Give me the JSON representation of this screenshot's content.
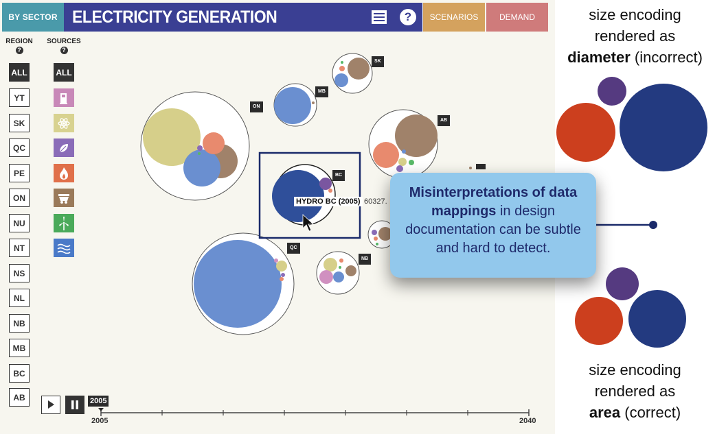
{
  "header": {
    "sector_button": "BY SECTOR",
    "title": "ELECTRICITY GENERATION",
    "list_icon": "list-icon",
    "help_icon": "?",
    "scenarios_button": "SCENARIOS",
    "demand_button": "DEMAND"
  },
  "region_column": {
    "heading": "REGION",
    "help": "?",
    "items": [
      "ALL",
      "YT",
      "SK",
      "QC",
      "PE",
      "ON",
      "NU",
      "NT",
      "NS",
      "NL",
      "NB",
      "MB",
      "BC",
      "AB"
    ],
    "selected": "ALL"
  },
  "sources_column": {
    "heading": "SOURCES",
    "help": "?",
    "all_label": "ALL",
    "items": [
      {
        "icon": "fuel-pump-icon",
        "color": "#c888b8"
      },
      {
        "icon": "atom-icon",
        "color": "#d8d290"
      },
      {
        "icon": "leaf-icon",
        "color": "#8a6cb8"
      },
      {
        "icon": "flame-icon",
        "color": "#e0704a"
      },
      {
        "icon": "coal-cart-icon",
        "color": "#9a7a5a"
      },
      {
        "icon": "wind-turbine-icon",
        "color": "#4aaa5a"
      },
      {
        "icon": "water-waves-icon",
        "color": "#4a7ac8"
      }
    ]
  },
  "region_tags": {
    "sk": "SK",
    "mb": "MB",
    "on": "ON",
    "ab": "AB",
    "bc": "BC",
    "qc": "QC",
    "nb": "NB"
  },
  "tooltip": {
    "label": "HYDRO BC (2005)",
    "value": "60327."
  },
  "timeline": {
    "play_icon": "play-icon",
    "pause_icon": "pause-icon",
    "current_year": "2005",
    "start_label": "2005",
    "end_label": "2040"
  },
  "callout": {
    "bold_part": "Misinterpretations of data mappings",
    "rest": " in design documentation can be subtle and hard to detect."
  },
  "annotation_top": {
    "line1": "size encoding",
    "line2": "rendered as",
    "bold": "diameter",
    "tail": " (incorrect)"
  },
  "annotation_bottom": {
    "line1": "size encoding",
    "line2": "rendered as",
    "bold": "area",
    "tail": " (correct)"
  },
  "colors": {
    "hydro": "#6a8fd0",
    "nuclear": "#d6cf8a",
    "coal": "#a0826a",
    "gas": "#e88a6e",
    "biomass": "#8a6cb8",
    "oil": "#d090c0",
    "wind": "#58b868",
    "highlight_box": "#1a2a6a",
    "demo_blue": "#233a80",
    "demo_red": "#cc3f1e",
    "demo_purple": "#553a80"
  }
}
